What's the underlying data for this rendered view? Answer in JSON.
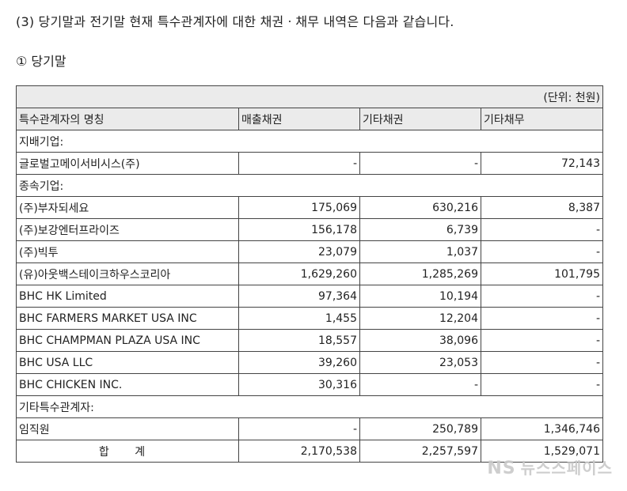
{
  "heading": "(3) 당기말과 전기말 현재 특수관계자에 대한 채권ㆍ채무 내역은 다음과 같습니다.",
  "subheading": "① 당기말",
  "table": {
    "unit": "(단위: 천원)",
    "headers": [
      "특수관계자의 명칭",
      "매출채권",
      "기타채권",
      "기타채무"
    ],
    "rows": [
      {
        "type": "section",
        "label": "지배기업:"
      },
      {
        "type": "data",
        "name": "글로벌고메이서비시스(주)",
        "sales_receivable": "-",
        "other_receivable": "-",
        "other_payable": "72,143"
      },
      {
        "type": "section",
        "label": "종속기업:"
      },
      {
        "type": "data",
        "name": "(주)부자되세요",
        "sales_receivable": "175,069",
        "other_receivable": "630,216",
        "other_payable": "8,387"
      },
      {
        "type": "data",
        "name": "(주)보강엔터프라이즈",
        "sales_receivable": "156,178",
        "other_receivable": "6,739",
        "other_payable": "-"
      },
      {
        "type": "data",
        "name": "(주)빅투",
        "sales_receivable": "23,079",
        "other_receivable": "1,037",
        "other_payable": "-"
      },
      {
        "type": "data",
        "name": "(유)아웃백스테이크하우스코리아",
        "sales_receivable": "1,629,260",
        "other_receivable": "1,285,269",
        "other_payable": "101,795"
      },
      {
        "type": "data",
        "name": "BHC HK Limited",
        "sales_receivable": "97,364",
        "other_receivable": "10,194",
        "other_payable": "-"
      },
      {
        "type": "data",
        "name": "BHC FARMERS MARKET USA INC",
        "sales_receivable": "1,455",
        "other_receivable": "12,204",
        "other_payable": "-"
      },
      {
        "type": "data",
        "name": "BHC CHAMPMAN PLAZA USA INC",
        "sales_receivable": "18,557",
        "other_receivable": "38,096",
        "other_payable": "-"
      },
      {
        "type": "data",
        "name": "BHC USA LLC",
        "sales_receivable": "39,260",
        "other_receivable": "23,053",
        "other_payable": "-"
      },
      {
        "type": "data",
        "name": "BHC CHICKEN INC.",
        "sales_receivable": "30,316",
        "other_receivable": "-",
        "other_payable": "-"
      },
      {
        "type": "section",
        "label": "기타특수관계자:"
      },
      {
        "type": "data",
        "name": "임직원",
        "sales_receivable": "-",
        "other_receivable": "250,789",
        "other_payable": "1,346,746"
      },
      {
        "type": "total",
        "name": "합 계",
        "sales_receivable": "2,170,538",
        "other_receivable": "2,257,597",
        "other_payable": "1,529,071"
      }
    ]
  },
  "watermark": {
    "logo": "NS",
    "text": "뉴스스페이스"
  }
}
